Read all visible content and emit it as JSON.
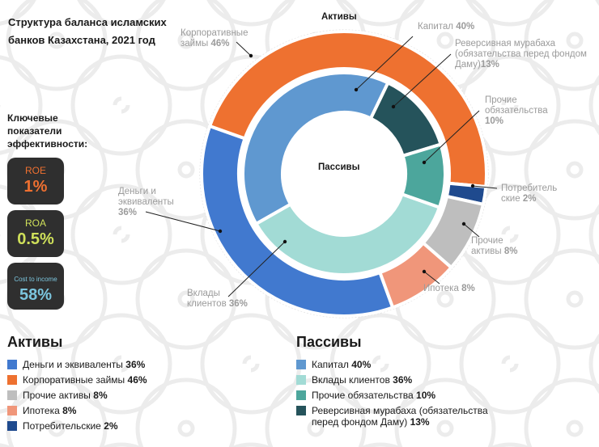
{
  "title": "Структура баланса исламских банков Казахстана, 2021 год",
  "kpi": {
    "heading": "Ключевые показатели эффективности:",
    "items": [
      {
        "label": "ROE",
        "value": "1%",
        "color": "#ef7030"
      },
      {
        "label": "ROA",
        "value": "0.5%",
        "color": "#cfe05a"
      },
      {
        "label": "Cost to income",
        "value": "58%",
        "color": "#7cc6de"
      }
    ]
  },
  "chart_data": {
    "type": "pie",
    "subtype": "nested-donut",
    "outer": {
      "name": "Активы",
      "slices": [
        {
          "label": "Деньги и эквиваленты",
          "value": 36,
          "pct": "36%",
          "color": "#4179cf"
        },
        {
          "label": "Корпоративные займы",
          "value": 46,
          "pct": "46%",
          "color": "#ee7130"
        },
        {
          "label": "Прочие активы",
          "value": 8,
          "pct": "8%",
          "color": "#bebebe"
        },
        {
          "label": "Ипотека",
          "value": 8,
          "pct": "8%",
          "color": "#f0967a"
        },
        {
          "label": "Потребительские",
          "value": 2,
          "pct": "2%",
          "color": "#1f4a8e"
        }
      ]
    },
    "inner": {
      "name": "Пассивы",
      "slices": [
        {
          "label": "Капитал",
          "value": 40,
          "pct": "40%",
          "color": "#5f98d0"
        },
        {
          "label": "Вклады клиентов",
          "value": 36,
          "pct": "36%",
          "color": "#a2dbd5"
        },
        {
          "label": "Прочие обязательства",
          "value": 10,
          "pct": "10%",
          "color": "#4ca69c"
        },
        {
          "label": "Реверсивная мурабаха (обязательства перед фондом Даму)",
          "value": 13,
          "pct": "13%",
          "color": "#25535b"
        }
      ]
    },
    "callouts": {
      "corp": "Корпоративные займы",
      "money": "Деньги и эквиваленты",
      "deposits": "Вклады клиентов",
      "capital": "Капитал",
      "murabaha1": "Реверсивная мурабаха",
      "murabaha2": "(обязательства перед фондом",
      "murabaha3": "Даму)",
      "other_liab": "Прочие обязательства",
      "consumer1": "Потребитель",
      "consumer2": "ские",
      "other_assets": "Прочие активы",
      "mortgage": "Ипотека"
    }
  }
}
